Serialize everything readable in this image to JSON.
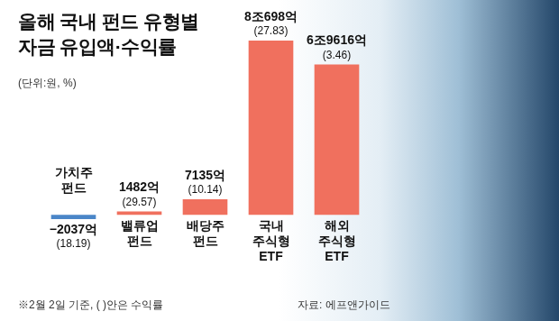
{
  "chart_data": {
    "type": "bar",
    "title": "올해 국내 펀드 유형별\n자금 유입액·수익률",
    "subtitle": "(단위:원, %)",
    "categories": [
      "가치주 펀드",
      "밸류업 펀드",
      "배당주 펀드",
      "국내 주식형 ETF",
      "해외 주식형 ETF"
    ],
    "values": [
      -2037,
      1482,
      7135,
      80698,
      69616
    ],
    "value_labels": [
      "−2037억",
      "1482억",
      "7135억",
      "8조698억",
      "6조9616억"
    ],
    "returns": [
      18.19,
      29.57,
      10.14,
      27.83,
      3.46
    ],
    "return_labels": [
      "(18.19)",
      "(29.57)",
      "(10.14)",
      "(27.83)",
      "(3.46)"
    ],
    "colors": [
      "#4a86c8",
      "#f0705e",
      "#f0705e",
      "#f0705e",
      "#f0705e"
    ],
    "data_labels": true,
    "tick_labels": false,
    "grid": false,
    "note": "※2월 2일 기준, ( )안은 수익률",
    "source": "자료: 에프앤가이드"
  }
}
